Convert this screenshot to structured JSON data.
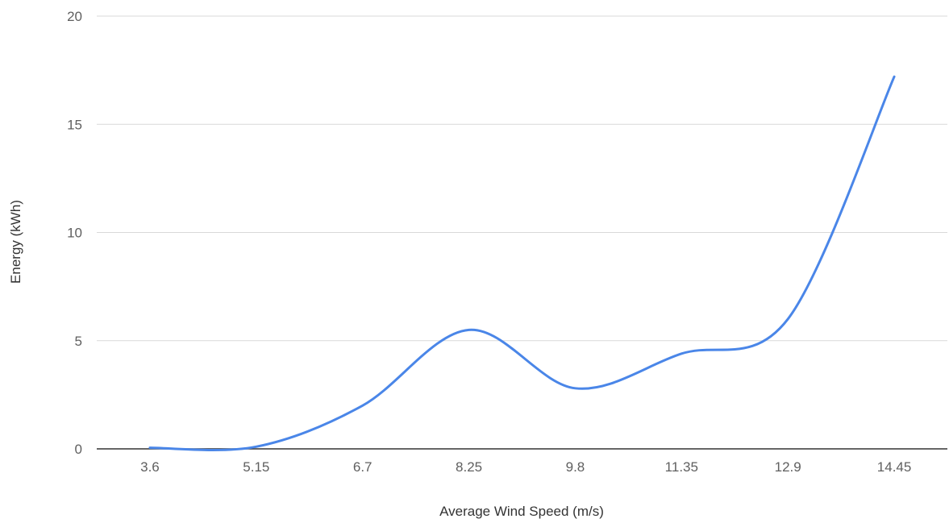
{
  "chart_data": {
    "type": "line",
    "title": "",
    "xlabel": "Average Wind Speed (m/s)",
    "ylabel": "Energy (kWh)",
    "categories": [
      "3.6",
      "5.15",
      "6.7",
      "8.25",
      "9.8",
      "11.35",
      "12.9",
      "14.45"
    ],
    "x": [
      3.6,
      5.15,
      6.7,
      8.25,
      9.8,
      11.35,
      12.9,
      14.45
    ],
    "ylim": [
      0,
      20
    ],
    "yticks": [
      "0",
      "5",
      "10",
      "15",
      "20"
    ],
    "grid": true,
    "legend": "none",
    "smooth": true,
    "series": [
      {
        "color": "#4a86e8",
        "values": [
          0.05,
          0.1,
          2.0,
          5.5,
          2.8,
          4.4,
          6.0,
          17.2
        ]
      }
    ]
  }
}
